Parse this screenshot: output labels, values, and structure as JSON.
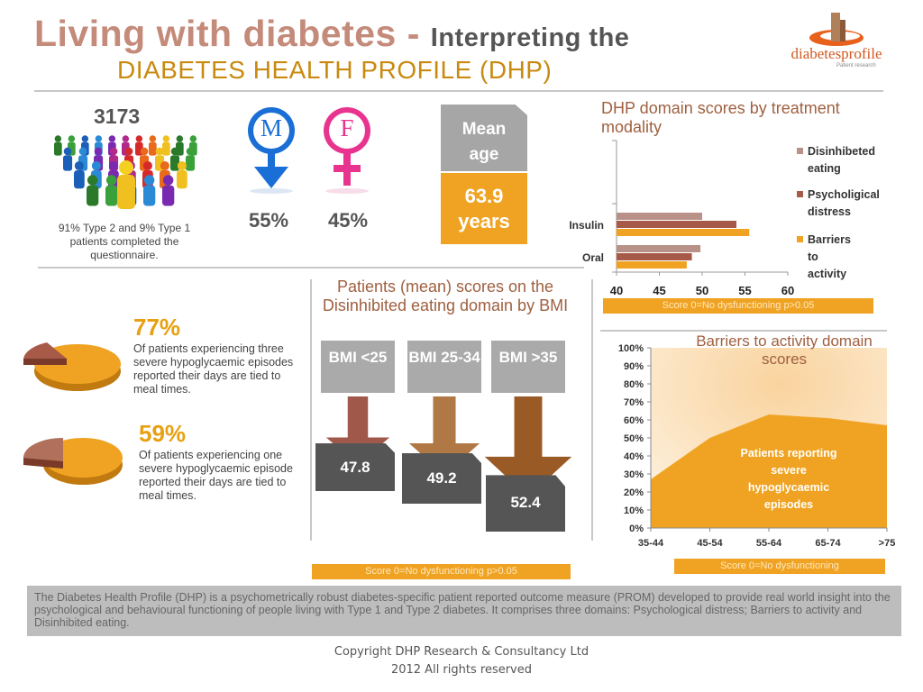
{
  "header": {
    "title_main": "Living with diabetes - ",
    "title_sub": "Interpreting the",
    "title_line2": "DIABETES HEALTH PROFILE (DHP)"
  },
  "logo": {
    "name": "diabetesprofile",
    "tagline": "Patient research"
  },
  "stats": {
    "patients_count": "3173",
    "patients_note": "91% Type 2 and 9% Type 1 patients completed the questionnaire.",
    "male_symbol": "M",
    "female_symbol": "F",
    "male_pct": "55%",
    "female_pct": "45%",
    "mean_age_label": "Mean age",
    "mean_age_value": "63.9 years"
  },
  "hypo": {
    "stat1_pct": "77%",
    "stat1_text": "Of patients experiencing three severe hypoglycaemic episodes reported their days are tied to meal times.",
    "stat2_pct": "59%",
    "stat2_text": "Of patients experiencing one severe hypoglycaemic episode reported their days are tied to meal times."
  },
  "chart_data": [
    {
      "type": "bar",
      "orientation": "horizontal",
      "title": "DHP domain scores by treatment modality",
      "categories": [
        "Insulin",
        "Oral"
      ],
      "series": [
        {
          "name": "Disinhibeted eating",
          "values": [
            50,
            49.8
          ],
          "color": "#b89288"
        },
        {
          "name": "Psycholigical distress",
          "values": [
            54,
            48.8
          ],
          "color": "#a85a48"
        },
        {
          "name": "Barriers to activity",
          "values": [
            55.5,
            48.2
          ],
          "color": "#f0a322"
        }
      ],
      "xlim": [
        40,
        60
      ],
      "xticks": [
        40,
        45,
        50,
        55,
        60
      ],
      "legend": "right",
      "footnote": "Score 0=No dysfunctioning p>0.05"
    },
    {
      "type": "bar",
      "title": "Patients (mean) scores on the Disinhibited eating domain by BMI",
      "categories": [
        "BMI <25",
        "BMI 25-34",
        "BMI >35"
      ],
      "values": [
        47.8,
        49.2,
        52.4
      ],
      "footnote": "Score 0=No dysfunctioning p>0.05"
    },
    {
      "type": "area",
      "title": "Barriers to activity domain scores",
      "categories": [
        "35-44",
        "45-54",
        "55-64",
        "65-74",
        ">75"
      ],
      "values": [
        27,
        50,
        63,
        61,
        57
      ],
      "ylim": [
        0,
        100
      ],
      "yticks": [
        "0%",
        "10%",
        "20%",
        "30%",
        "40%",
        "50%",
        "60%",
        "70%",
        "80%",
        "90%",
        "100%"
      ],
      "annotation": "Patients reporting severe hypoglycaemic episodes",
      "footnote": "Score 0=No dysfunctioning"
    }
  ],
  "footer": {
    "description": "The Diabetes Health Profile (DHP) is a psychometrically robust diabetes-specific patient reported outcome measure (PROM) developed to provide real world insight into the psychological and behavioural functioning of people living with Type 1 and Type 2 diabetes. It comprises three domains: Psychological distress; Barriers to activity and Disinhibited eating.",
    "copyright_line1": "Copyright DHP Research & Consultancy Ltd",
    "copyright_line2": "2012 All rights reserved"
  }
}
